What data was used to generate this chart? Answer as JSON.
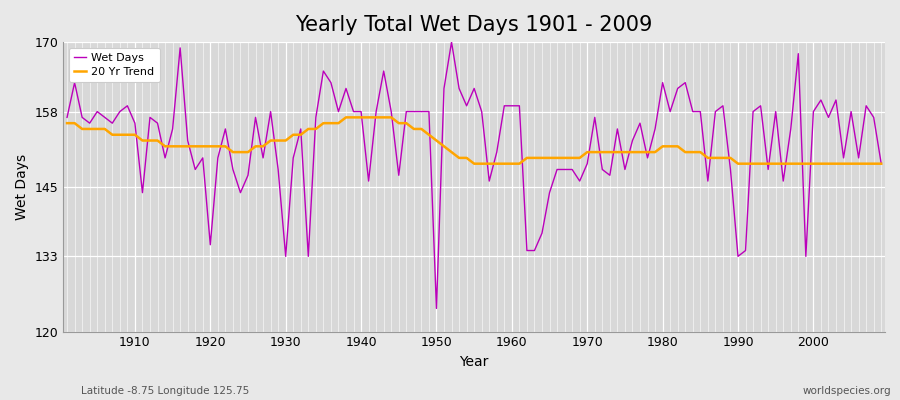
{
  "title": "Yearly Total Wet Days 1901 - 2009",
  "xlabel": "Year",
  "ylabel": "Wet Days",
  "years": [
    1901,
    1902,
    1903,
    1904,
    1905,
    1906,
    1907,
    1908,
    1909,
    1910,
    1911,
    1912,
    1913,
    1914,
    1915,
    1916,
    1917,
    1918,
    1919,
    1920,
    1921,
    1922,
    1923,
    1924,
    1925,
    1926,
    1927,
    1928,
    1929,
    1930,
    1931,
    1932,
    1933,
    1934,
    1935,
    1936,
    1937,
    1938,
    1939,
    1940,
    1941,
    1942,
    1943,
    1944,
    1945,
    1946,
    1947,
    1948,
    1949,
    1950,
    1951,
    1952,
    1953,
    1954,
    1955,
    1956,
    1957,
    1958,
    1959,
    1960,
    1961,
    1962,
    1963,
    1964,
    1965,
    1966,
    1967,
    1968,
    1969,
    1970,
    1971,
    1972,
    1973,
    1974,
    1975,
    1976,
    1977,
    1978,
    1979,
    1980,
    1981,
    1982,
    1983,
    1984,
    1985,
    1986,
    1987,
    1988,
    1989,
    1990,
    1991,
    1992,
    1993,
    1994,
    1995,
    1996,
    1997,
    1998,
    1999,
    2000,
    2001,
    2002,
    2003,
    2004,
    2005,
    2006,
    2007,
    2008,
    2009
  ],
  "wet_days": [
    157,
    163,
    157,
    156,
    158,
    157,
    156,
    158,
    159,
    156,
    144,
    157,
    156,
    150,
    155,
    169,
    153,
    148,
    150,
    135,
    150,
    155,
    148,
    144,
    147,
    157,
    150,
    158,
    148,
    133,
    150,
    155,
    133,
    157,
    165,
    163,
    158,
    162,
    158,
    158,
    146,
    158,
    165,
    158,
    147,
    158,
    158,
    158,
    158,
    124,
    162,
    170,
    162,
    159,
    162,
    158,
    146,
    151,
    159,
    159,
    159,
    134,
    134,
    137,
    144,
    148,
    148,
    148,
    146,
    149,
    157,
    148,
    147,
    155,
    148,
    153,
    156,
    150,
    155,
    163,
    158,
    162,
    163,
    158,
    158,
    146,
    158,
    159,
    148,
    133,
    134,
    158,
    159,
    148,
    158,
    146,
    155,
    168,
    133,
    158,
    160,
    157,
    160,
    150,
    158,
    150,
    159,
    157,
    149
  ],
  "trend_years": [
    1901,
    1902,
    1903,
    1904,
    1905,
    1906,
    1907,
    1908,
    1909,
    1910,
    1911,
    1912,
    1913,
    1914,
    1915,
    1916,
    1917,
    1918,
    1919,
    1920,
    1921,
    1922,
    1923,
    1924,
    1925,
    1926,
    1927,
    1928,
    1929,
    1930,
    1931,
    1932,
    1933,
    1934,
    1935,
    1936,
    1937,
    1938,
    1939,
    1940,
    1941,
    1942,
    1943,
    1944,
    1945,
    1946,
    1947,
    1948,
    1949,
    1950,
    1951,
    1952,
    1953,
    1954,
    1955,
    1956,
    1957,
    1958,
    1959,
    1960,
    1961,
    1962,
    1963,
    1964,
    1965,
    1966,
    1967,
    1968,
    1969,
    1970,
    1971,
    1972,
    1973,
    1974,
    1975,
    1976,
    1977,
    1978,
    1979,
    1980,
    1981,
    1982,
    1983,
    1984,
    1985,
    1986,
    1987,
    1988,
    1989,
    1990,
    1991,
    1992,
    1993,
    1994,
    1995,
    1996,
    1997,
    1998,
    1999,
    2000,
    2001,
    2002,
    2003,
    2004,
    2005,
    2006,
    2007,
    2008,
    2009
  ],
  "trend_values": [
    156,
    156,
    155,
    155,
    155,
    155,
    154,
    154,
    154,
    154,
    153,
    153,
    153,
    152,
    152,
    152,
    152,
    152,
    152,
    152,
    152,
    152,
    151,
    151,
    151,
    152,
    152,
    153,
    153,
    153,
    154,
    154,
    155,
    155,
    156,
    156,
    156,
    157,
    157,
    157,
    157,
    157,
    157,
    157,
    156,
    156,
    155,
    155,
    154,
    153,
    152,
    151,
    150,
    150,
    149,
    149,
    149,
    149,
    149,
    149,
    149,
    150,
    150,
    150,
    150,
    150,
    150,
    150,
    150,
    151,
    151,
    151,
    151,
    151,
    151,
    151,
    151,
    151,
    151,
    152,
    152,
    152,
    151,
    151,
    151,
    150,
    150,
    150,
    150,
    149,
    149,
    149,
    149,
    149,
    149,
    149,
    149,
    149,
    149,
    149,
    149,
    149,
    149,
    149,
    149,
    149,
    149,
    149,
    149
  ],
  "wet_days_color": "#bb00bb",
  "trend_color": "#FFA500",
  "background_color": "#e8e8e8",
  "plot_bg_color": "#d8d8d8",
  "inner_bg_color": "#d8d8d8",
  "grid_color": "#ffffff",
  "ylim": [
    120,
    170
  ],
  "yticks": [
    120,
    133,
    145,
    158,
    170
  ],
  "xticks": [
    1910,
    1920,
    1930,
    1940,
    1950,
    1960,
    1970,
    1980,
    1990,
    2000
  ],
  "legend_labels": [
    "Wet Days",
    "20 Yr Trend"
  ],
  "subtitle_left": "Latitude -8.75 Longitude 125.75",
  "subtitle_right": "worldspecies.org",
  "title_fontsize": 15,
  "axis_label_fontsize": 10,
  "tick_fontsize": 9
}
